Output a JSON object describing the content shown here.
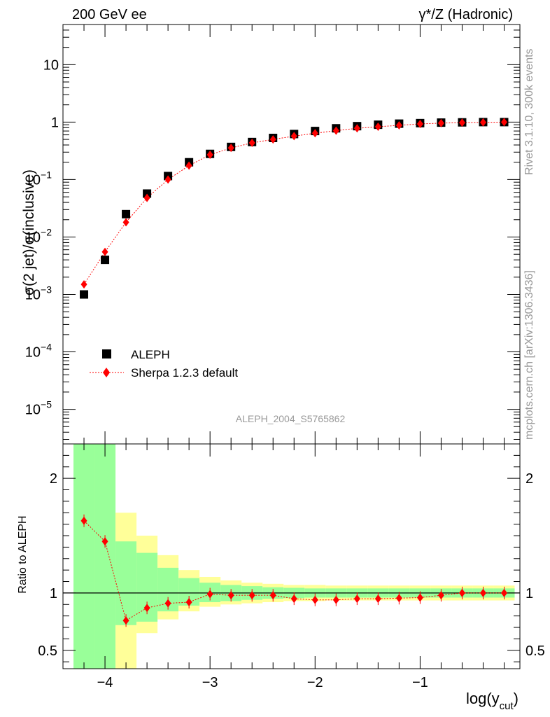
{
  "header": {
    "left_title": "200 GeV ee",
    "right_title": "γ*/Z (Hadronic)"
  },
  "side_labels": {
    "rivet": "Rivet 3.1.10,  300k events",
    "mcplots": "mcplots.cern.ch [arXiv:1306.3436]"
  },
  "analysis_tag": "ALEPH_2004_S5765862",
  "colors": {
    "data": "#000000",
    "mc": "#ff0000",
    "band_inner": "#99ff99",
    "band_outer": "#ffff99"
  },
  "chart_data": [
    {
      "type": "scatter",
      "yscale": "log",
      "ylabel": "σ(2 jet)/σ(inclusive)",
      "xlim": [
        -4.4,
        -0.05
      ],
      "ylim": [
        2.5e-06,
        50
      ],
      "y_ticks": [
        {
          "value": 1e-05,
          "base": "10",
          "exp": "−5"
        },
        {
          "value": 0.0001,
          "base": "10",
          "exp": "−4"
        },
        {
          "value": 0.001,
          "base": "10",
          "exp": "−3"
        },
        {
          "value": 0.01,
          "base": "10",
          "exp": "−2"
        },
        {
          "value": 0.1,
          "base": "10",
          "exp": "−1"
        },
        {
          "value": 1,
          "base": "1",
          "exp": ""
        },
        {
          "value": 10,
          "base": "10",
          "exp": ""
        }
      ],
      "legend_position": "bottom-left",
      "series": [
        {
          "name": "ALEPH",
          "marker": "square",
          "x": [
            -4.2,
            -4.0,
            -3.8,
            -3.6,
            -3.4,
            -3.2,
            -3.0,
            -2.8,
            -2.6,
            -2.4,
            -2.2,
            -2.0,
            -1.8,
            -1.6,
            -1.4,
            -1.2,
            -1.0,
            -0.8,
            -0.6,
            -0.4,
            -0.2
          ],
          "y": [
            0.001,
            0.004,
            0.025,
            0.057,
            0.115,
            0.2,
            0.28,
            0.37,
            0.45,
            0.53,
            0.62,
            0.7,
            0.78,
            0.85,
            0.9,
            0.94,
            0.96,
            0.98,
            0.99,
            1.0,
            1.0
          ]
        },
        {
          "name": "Sherpa 1.2.3 default",
          "marker": "diamond",
          "line": "dotted",
          "x": [
            -4.2,
            -4.0,
            -3.8,
            -3.6,
            -3.4,
            -3.2,
            -3.0,
            -2.8,
            -2.6,
            -2.4,
            -2.2,
            -2.0,
            -1.8,
            -1.6,
            -1.4,
            -1.2,
            -1.0,
            -0.8,
            -0.6,
            -0.4,
            -0.2
          ],
          "y": [
            0.0015,
            0.0055,
            0.018,
            0.048,
            0.1,
            0.175,
            0.27,
            0.355,
            0.435,
            0.5,
            0.57,
            0.64,
            0.71,
            0.78,
            0.83,
            0.88,
            0.93,
            0.96,
            0.98,
            0.99,
            1.0
          ]
        }
      ]
    },
    {
      "type": "scatter",
      "ylabel": "Ratio to ALEPH",
      "xlabel": "log(y_cut)",
      "xlim": [
        -4.4,
        -0.05
      ],
      "ylim": [
        0.34,
        2.3
      ],
      "x_ticks": [
        {
          "value": -4,
          "label": "−4"
        },
        {
          "value": -3,
          "label": "−3"
        },
        {
          "value": -2,
          "label": "−2"
        },
        {
          "value": -1,
          "label": "−1"
        }
      ],
      "y_ticks": [
        {
          "value": 0.5,
          "label": "0.5"
        },
        {
          "value": 1,
          "label": "1"
        },
        {
          "value": 2,
          "label": "2"
        }
      ],
      "reference_line": 1,
      "uncertainty_bands": [
        {
          "x0": -4.3,
          "x1": -4.1,
          "outer": [
            0.34,
            2.3
          ],
          "inner": [
            0.34,
            2.3
          ]
        },
        {
          "x0": -4.1,
          "x1": -3.9,
          "outer": [
            0.34,
            2.3
          ],
          "inner": [
            0.34,
            2.3
          ]
        },
        {
          "x0": -3.9,
          "x1": -3.7,
          "outer": [
            0.34,
            1.7
          ],
          "inner": [
            0.72,
            1.45
          ]
        },
        {
          "x0": -3.7,
          "x1": -3.5,
          "outer": [
            0.65,
            1.5
          ],
          "inner": [
            0.75,
            1.35
          ]
        },
        {
          "x0": -3.5,
          "x1": -3.3,
          "outer": [
            0.77,
            1.33
          ],
          "inner": [
            0.84,
            1.22
          ]
        },
        {
          "x0": -3.3,
          "x1": -3.1,
          "outer": [
            0.84,
            1.2
          ],
          "inner": [
            0.89,
            1.13
          ]
        },
        {
          "x0": -3.1,
          "x1": -2.9,
          "outer": [
            0.88,
            1.14
          ],
          "inner": [
            0.92,
            1.09
          ]
        },
        {
          "x0": -2.9,
          "x1": -2.7,
          "outer": [
            0.9,
            1.11
          ],
          "inner": [
            0.93,
            1.07
          ]
        },
        {
          "x0": -2.7,
          "x1": -2.5,
          "outer": [
            0.91,
            1.09
          ],
          "inner": [
            0.94,
            1.06
          ]
        },
        {
          "x0": -2.5,
          "x1": -2.3,
          "outer": [
            0.92,
            1.08
          ],
          "inner": [
            0.95,
            1.05
          ]
        },
        {
          "x0": -2.3,
          "x1": -2.1,
          "outer": [
            0.93,
            1.07
          ],
          "inner": [
            0.955,
            1.045
          ]
        },
        {
          "x0": -2.1,
          "x1": -1.9,
          "outer": [
            0.93,
            1.07
          ],
          "inner": [
            0.96,
            1.04
          ]
        },
        {
          "x0": -1.9,
          "x1": -1.7,
          "outer": [
            0.935,
            1.065
          ],
          "inner": [
            0.96,
            1.04
          ]
        },
        {
          "x0": -1.7,
          "x1": -1.5,
          "outer": [
            0.935,
            1.065
          ],
          "inner": [
            0.96,
            1.04
          ]
        },
        {
          "x0": -1.5,
          "x1": -1.3,
          "outer": [
            0.935,
            1.065
          ],
          "inner": [
            0.96,
            1.04
          ]
        },
        {
          "x0": -1.3,
          "x1": -1.1,
          "outer": [
            0.935,
            1.065
          ],
          "inner": [
            0.96,
            1.04
          ]
        },
        {
          "x0": -1.1,
          "x1": -0.9,
          "outer": [
            0.935,
            1.065
          ],
          "inner": [
            0.96,
            1.04
          ]
        },
        {
          "x0": -0.9,
          "x1": -0.7,
          "outer": [
            0.935,
            1.065
          ],
          "inner": [
            0.96,
            1.04
          ]
        },
        {
          "x0": -0.7,
          "x1": -0.5,
          "outer": [
            0.935,
            1.065
          ],
          "inner": [
            0.96,
            1.04
          ]
        },
        {
          "x0": -0.5,
          "x1": -0.3,
          "outer": [
            0.935,
            1.065
          ],
          "inner": [
            0.96,
            1.04
          ]
        },
        {
          "x0": -0.3,
          "x1": -0.1,
          "outer": [
            0.935,
            1.065
          ],
          "inner": [
            0.96,
            1.04
          ]
        }
      ],
      "series": [
        {
          "name": "Sherpa 1.2.3 default",
          "marker": "diamond",
          "line": "dotted",
          "x": [
            -4.2,
            -4.0,
            -3.8,
            -3.6,
            -3.4,
            -3.2,
            -3.0,
            -2.8,
            -2.6,
            -2.4,
            -2.2,
            -2.0,
            -1.8,
            -1.6,
            -1.4,
            -1.2,
            -1.0,
            -0.8,
            -0.6,
            -0.4,
            -0.2
          ],
          "y": [
            1.63,
            1.45,
            0.76,
            0.87,
            0.91,
            0.92,
            0.99,
            0.98,
            0.98,
            0.98,
            0.95,
            0.94,
            0.94,
            0.95,
            0.95,
            0.955,
            0.96,
            0.98,
            1.0,
            1.0,
            1.0
          ]
        }
      ]
    }
  ]
}
